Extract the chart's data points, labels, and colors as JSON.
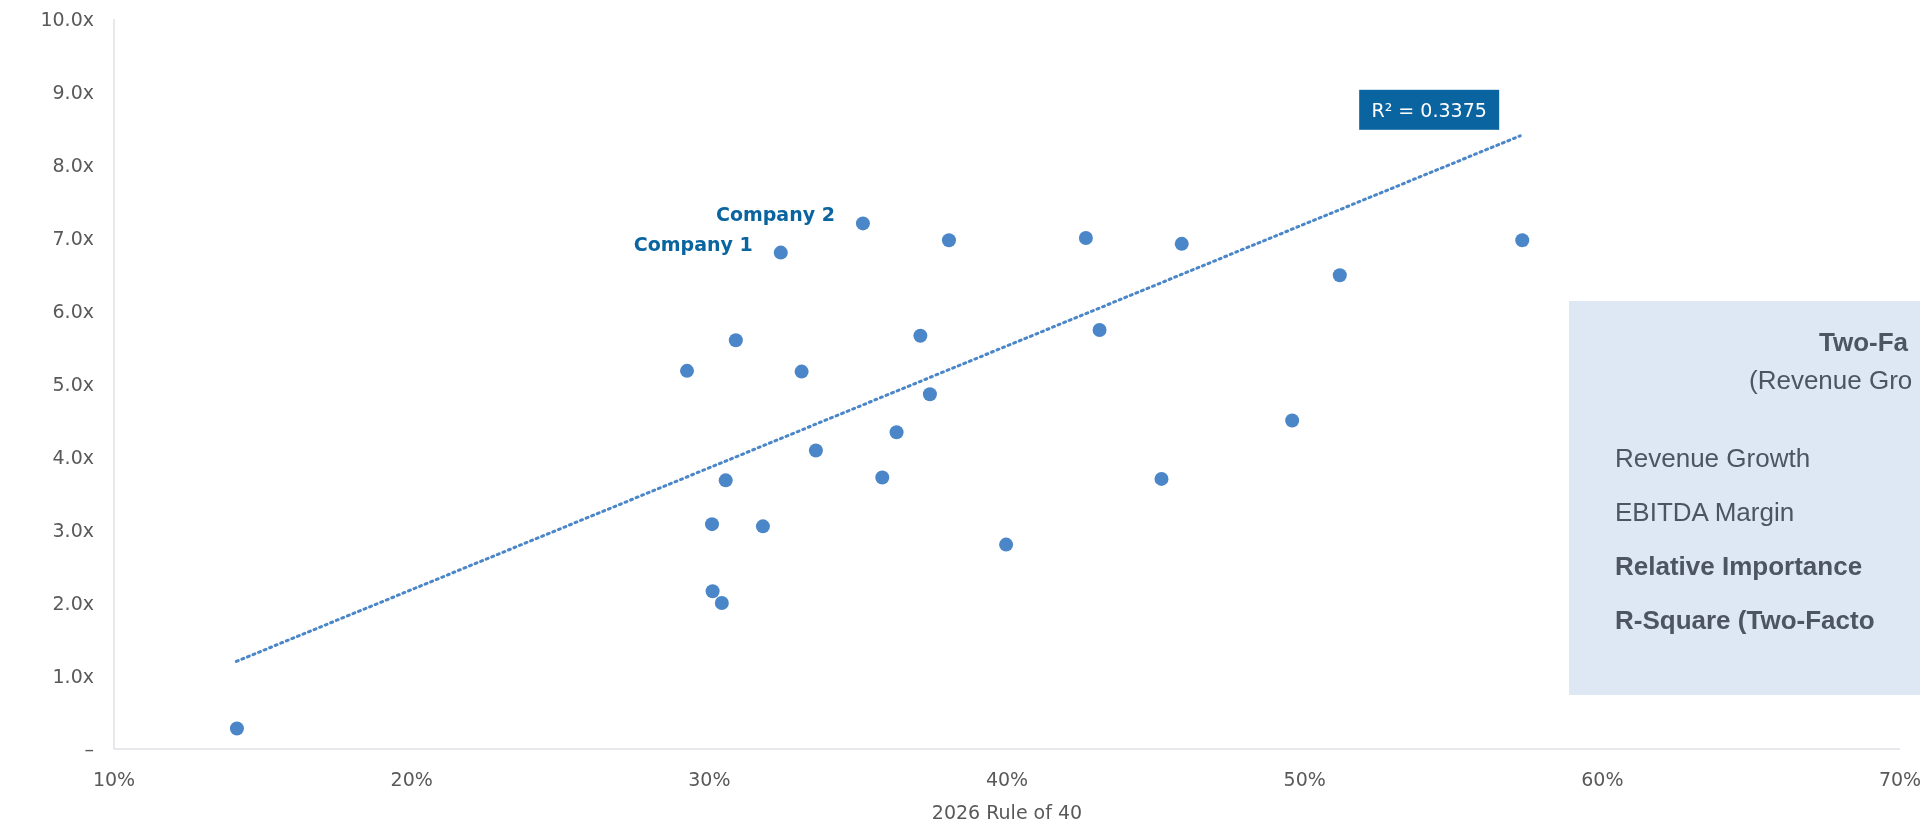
{
  "chart_data": {
    "type": "scatter",
    "xlabel": "2026 Rule of 40",
    "xlim": [
      10,
      70
    ],
    "xticks": [
      {
        "value": 10,
        "label": "10%"
      },
      {
        "value": 20,
        "label": "20%"
      },
      {
        "value": 30,
        "label": "30%"
      },
      {
        "value": 40,
        "label": "40%"
      },
      {
        "value": 50,
        "label": "50%"
      },
      {
        "value": 60,
        "label": "60%"
      },
      {
        "value": 70,
        "label": "70%"
      }
    ],
    "ylim": [
      0,
      10
    ],
    "yticks": [
      {
        "value": 0,
        "label": "–"
      },
      {
        "value": 1,
        "label": "1.0x"
      },
      {
        "value": 2,
        "label": "2.0x"
      },
      {
        "value": 3,
        "label": "3.0x"
      },
      {
        "value": 4,
        "label": "4.0x"
      },
      {
        "value": 5,
        "label": "5.0x"
      },
      {
        "value": 6,
        "label": "6.0x"
      },
      {
        "value": 7,
        "label": "7.0x"
      },
      {
        "value": 8,
        "label": "8.0x"
      },
      {
        "value": 9,
        "label": "9.0x"
      },
      {
        "value": 10,
        "label": "10.0x"
      }
    ],
    "grid": false,
    "legend": false,
    "marker": "circle",
    "series": [
      {
        "color": "#4a86c8",
        "x": [
          35.16,
          32.4,
          38.05,
          42.65,
          45.87,
          30.89,
          29.25,
          33.1,
          37.09,
          43.11,
          37.41,
          36.29,
          33.58,
          30.55,
          35.81,
          45.19,
          30.09,
          31.8,
          39.97,
          30.11,
          30.42,
          49.58,
          51.18,
          57.31,
          14.13
        ],
        "values": [
          7.2,
          6.8,
          6.97,
          7.0,
          6.92,
          5.6,
          5.18,
          5.17,
          5.66,
          5.74,
          4.86,
          4.34,
          4.09,
          3.68,
          3.72,
          3.7,
          3.08,
          3.05,
          2.8,
          2.16,
          2.0,
          4.5,
          6.49,
          6.97,
          0.28
        ]
      },
      {
        "type": "line",
        "color": "#4a86c8",
        "line_style": "dotted",
        "marker": "none",
        "x": [
          14.11,
          57.24
        ],
        "values": [
          1.2,
          8.4
        ]
      }
    ],
    "annotations": [
      {
        "text": "Company 2",
        "x": 35.16,
        "y": 7.2
      },
      {
        "text": "Company 1",
        "x": 32.4,
        "y": 6.8
      },
      {
        "text": "R² = 0.3375",
        "x": 57.24,
        "y": 8.4
      },
      "Two-Fa",
      "(Revenue Gro",
      "Revenue Growth",
      "EBITDA Margin",
      "Relative Importance",
      "R-Square (Two-Facto"
    ]
  }
}
